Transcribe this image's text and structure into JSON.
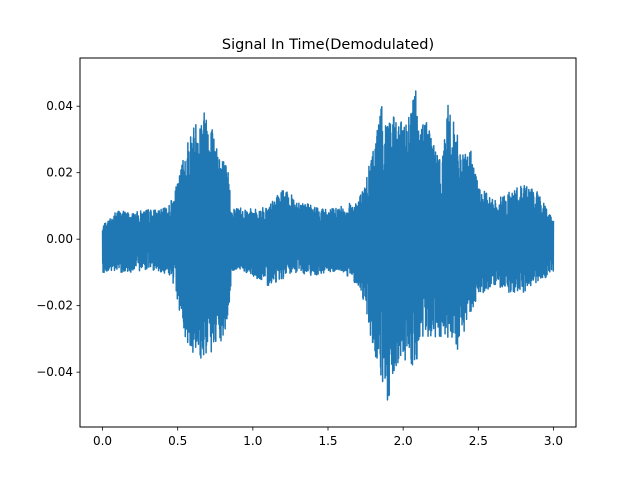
{
  "chart_data": {
    "type": "line",
    "title": "Signal In Time(Demodulated)",
    "xlabel": "",
    "ylabel": "",
    "xlim": [
      -0.15,
      3.15
    ],
    "ylim": [
      -0.0565,
      0.0545
    ],
    "x_ticks": [
      0.0,
      0.5,
      1.0,
      1.5,
      2.0,
      2.5,
      3.0
    ],
    "x_tick_labels": [
      "0.0",
      "0.5",
      "1.0",
      "1.5",
      "2.0",
      "2.5",
      "3.0"
    ],
    "y_ticks": [
      -0.04,
      -0.02,
      0.0,
      0.02,
      0.04
    ],
    "y_tick_labels": [
      "−0.04",
      "−0.02",
      "0.00",
      "0.02",
      "0.04"
    ],
    "grid": false,
    "series": [
      {
        "color": "#1f77b4",
        "x_range": [
          0.0,
          3.0
        ],
        "envelope": {
          "x": [
            0.0,
            0.1,
            0.2,
            0.3,
            0.4,
            0.45,
            0.5,
            0.55,
            0.6,
            0.65,
            0.7,
            0.75,
            0.8,
            0.84,
            0.86,
            0.9,
            1.0,
            1.1,
            1.2,
            1.3,
            1.4,
            1.5,
            1.6,
            1.7,
            1.75,
            1.8,
            1.85,
            1.9,
            1.95,
            2.0,
            2.05,
            2.08,
            2.1,
            2.15,
            2.2,
            2.25,
            2.3,
            2.35,
            2.4,
            2.45,
            2.5,
            2.6,
            2.7,
            2.8,
            2.9,
            3.0
          ],
          "upper": [
            0.004,
            0.009,
            0.008,
            0.009,
            0.009,
            0.011,
            0.017,
            0.028,
            0.034,
            0.038,
            0.04,
            0.032,
            0.025,
            0.02,
            0.009,
            0.01,
            0.009,
            0.01,
            0.015,
            0.012,
            0.01,
            0.009,
            0.01,
            0.012,
            0.017,
            0.028,
            0.04,
            0.039,
            0.036,
            0.035,
            0.04,
            0.049,
            0.033,
            0.039,
            0.03,
            0.023,
            0.041,
            0.033,
            0.025,
            0.027,
            0.016,
            0.012,
            0.014,
            0.017,
            0.014,
            0.006
          ],
          "lower": [
            -0.01,
            -0.01,
            -0.01,
            -0.009,
            -0.01,
            -0.011,
            -0.019,
            -0.03,
            -0.034,
            -0.037,
            -0.035,
            -0.034,
            -0.031,
            -0.023,
            -0.01,
            -0.009,
            -0.011,
            -0.014,
            -0.012,
            -0.01,
            -0.011,
            -0.01,
            -0.01,
            -0.014,
            -0.02,
            -0.034,
            -0.042,
            -0.051,
            -0.04,
            -0.036,
            -0.038,
            -0.04,
            -0.034,
            -0.031,
            -0.03,
            -0.031,
            -0.031,
            -0.036,
            -0.029,
            -0.022,
            -0.017,
            -0.014,
            -0.016,
            -0.016,
            -0.013,
            -0.01
          ]
        }
      }
    ]
  }
}
